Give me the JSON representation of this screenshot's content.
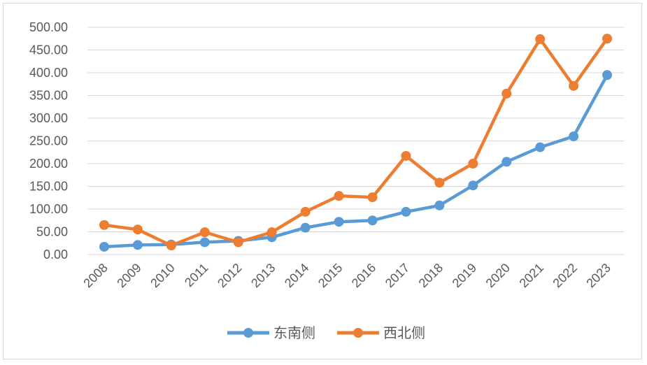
{
  "chart_data": {
    "type": "line",
    "title": "",
    "xlabel": "",
    "ylabel": "",
    "categories": [
      "2008",
      "2009",
      "2010",
      "2011",
      "2012",
      "2013",
      "2014",
      "2015",
      "2016",
      "2017",
      "2018",
      "2019",
      "2020",
      "2021",
      "2022",
      "2023"
    ],
    "ylim": [
      0,
      500
    ],
    "yticks": [
      "0.00",
      "50.00",
      "100.00",
      "150.00",
      "200.00",
      "250.00",
      "300.00",
      "350.00",
      "400.00",
      "450.00",
      "500.00"
    ],
    "grid": true,
    "legend_position": "bottom",
    "series": [
      {
        "name": "东南侧",
        "color": "#5b9bd5",
        "values": [
          17,
          21,
          22,
          27,
          30,
          38,
          59,
          72,
          75,
          94,
          108,
          152,
          204,
          236,
          260,
          395
        ]
      },
      {
        "name": "西北侧",
        "color": "#ed7d31",
        "values": [
          65,
          55,
          20,
          49,
          27,
          49,
          94,
          129,
          126,
          217,
          158,
          200,
          354,
          474,
          371,
          475
        ]
      }
    ]
  }
}
